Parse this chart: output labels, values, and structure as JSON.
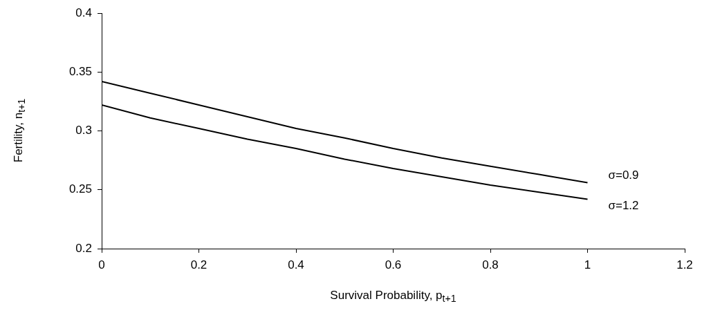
{
  "chart_data": {
    "type": "line",
    "xlabel": "Survival Probability, p$_{t+1}$",
    "ylabel": "Fertility, n$_{t+1}$",
    "xlim": [
      0,
      1.2
    ],
    "xticks": [
      0,
      0.2,
      0.4,
      0.6,
      0.8,
      1,
      1.2
    ],
    "ylim": [
      0.2,
      0.4
    ],
    "yticks": [
      0.2,
      0.25,
      0.3,
      0.35,
      0.4
    ],
    "grid": false,
    "legend": false,
    "marker": "none",
    "line_style": "solid",
    "series": [
      {
        "name": "σ=0.9",
        "color": "#000000",
        "x": [
          0,
          0.1,
          0.2,
          0.3,
          0.4,
          0.5,
          0.6,
          0.7,
          0.8,
          0.9,
          1
        ],
        "values": [
          0.342,
          0.332,
          0.322,
          0.312,
          0.302,
          0.294,
          0.285,
          0.277,
          0.27,
          0.263,
          0.256
        ]
      },
      {
        "name": "σ=1.2",
        "color": "#000000",
        "x": [
          0,
          0.1,
          0.2,
          0.3,
          0.4,
          0.5,
          0.6,
          0.7,
          0.8,
          0.9,
          1
        ],
        "values": [
          0.322,
          0.311,
          0.302,
          0.293,
          0.285,
          0.276,
          0.268,
          0.261,
          0.254,
          0.248,
          0.242
        ]
      }
    ]
  }
}
